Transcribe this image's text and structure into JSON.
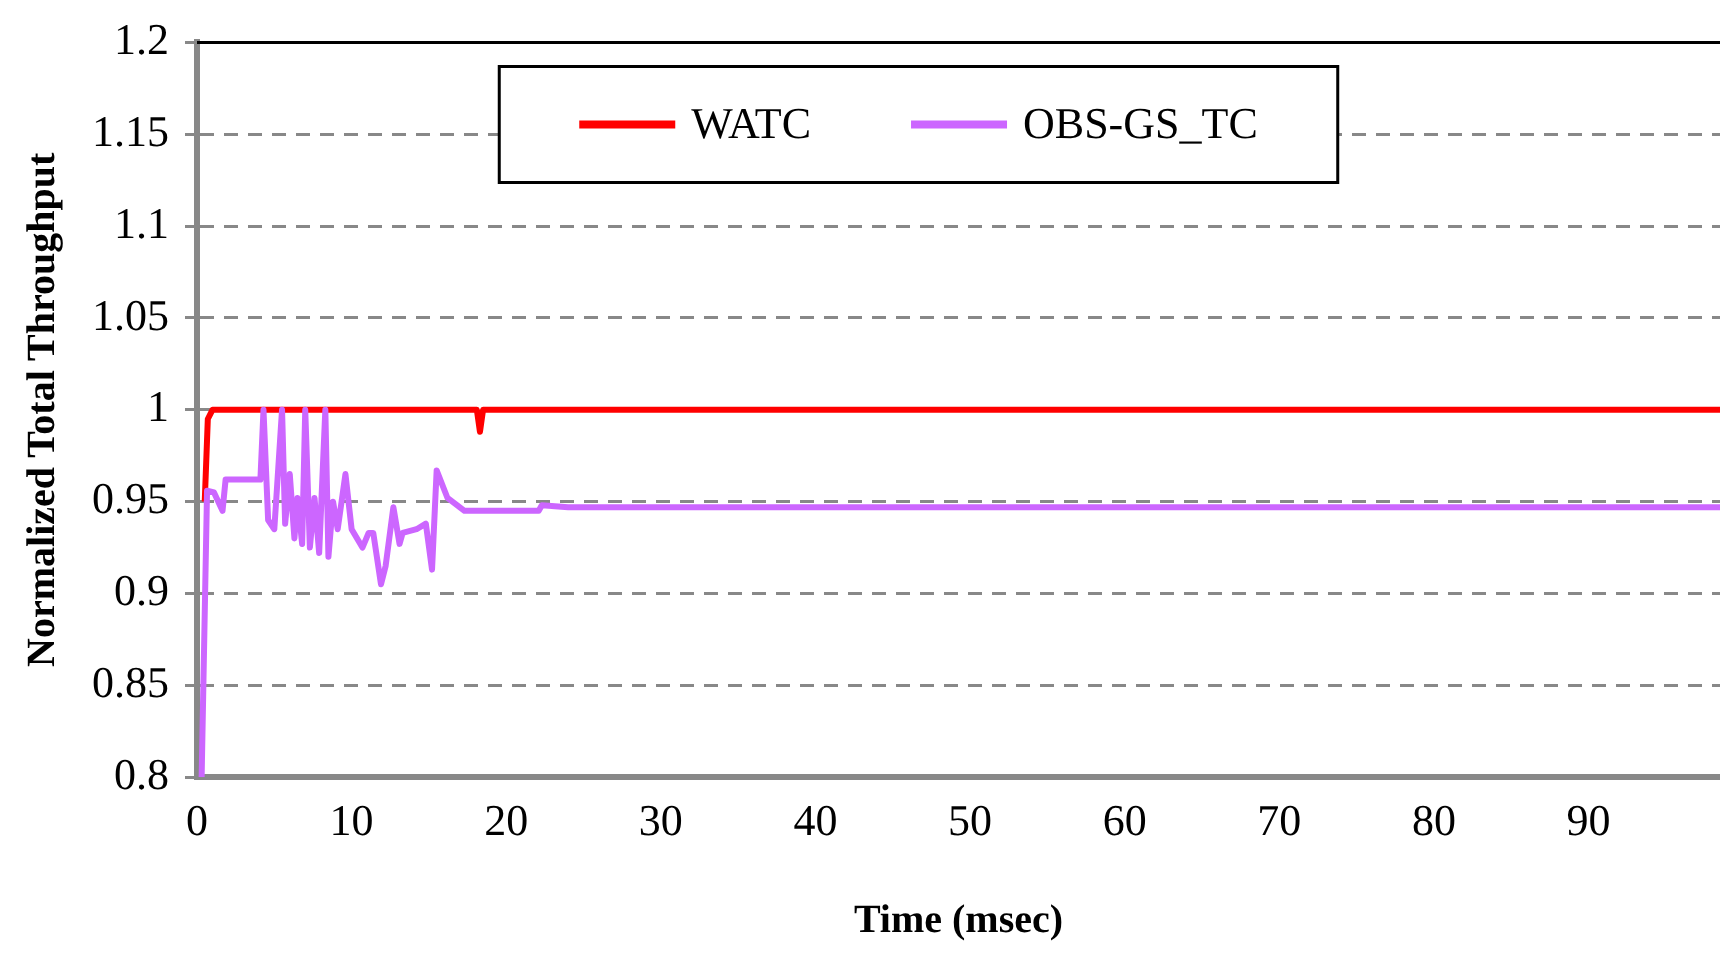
{
  "chart_data": {
    "type": "line",
    "xlabel": "Time (msec)",
    "ylabel": "Normalized Total Throughput",
    "xlim": [
      0,
      98.5
    ],
    "xticks": [
      0,
      10,
      20,
      30,
      40,
      50,
      60,
      70,
      80,
      90
    ],
    "ylim": [
      0.8,
      1.2
    ],
    "yticks": [
      0.8,
      0.85,
      0.9,
      0.95,
      1,
      1.05,
      1.1,
      1.15,
      1.2
    ],
    "grid": "y",
    "legend": "top",
    "marker": "none",
    "line_style": "solid",
    "series": [
      {
        "name": "WATC",
        "color": "#ff0000",
        "x": [
          0.5,
          0.7,
          1,
          18.1,
          18.3,
          18.5,
          98.5
        ],
        "values": [
          0.95,
          0.995,
          1,
          1,
          0.988,
          1,
          1
        ]
      },
      {
        "name": "OBS-GS_TC",
        "color": "#cc66ff",
        "x": [
          0.3,
          0.65,
          1.1,
          1.65,
          1.85,
          4.1,
          4.3,
          4.6,
          5,
          5.5,
          5.7,
          6,
          6.3,
          6.5,
          6.8,
          7,
          7.3,
          7.6,
          7.9,
          8.3,
          8.5,
          8.8,
          9.1,
          9.6,
          10,
          10.7,
          11.1,
          11.4,
          11.9,
          12.2,
          12.7,
          13.1,
          13.3,
          14.2,
          14.8,
          15.2,
          15.5,
          16.2,
          17.3,
          22.1,
          22.3,
          24,
          98.5
        ],
        "values": [
          0.8,
          0.956,
          0.955,
          0.945,
          0.962,
          0.962,
          1,
          0.94,
          0.935,
          1,
          0.938,
          0.965,
          0.93,
          0.952,
          0.927,
          1,
          0.925,
          0.952,
          0.922,
          1,
          0.92,
          0.95,
          0.935,
          0.965,
          0.935,
          0.925,
          0.933,
          0.933,
          0.905,
          0.915,
          0.947,
          0.927,
          0.933,
          0.935,
          0.938,
          0.913,
          0.967,
          0.952,
          0.945,
          0.945,
          0.948,
          0.947,
          0.947
        ]
      }
    ]
  }
}
